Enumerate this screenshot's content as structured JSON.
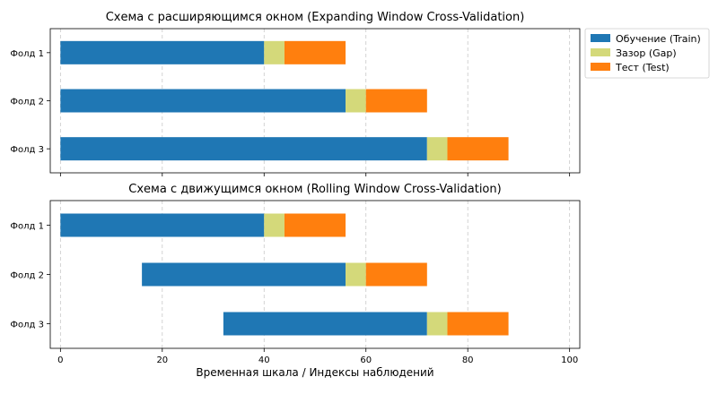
{
  "chart_data": {
    "type": "bar",
    "orientation": "horizontal-stacked-gantt",
    "xlabel": "Временная шкала / Индексы наблюдений",
    "xlim": [
      -2,
      102
    ],
    "xticks": [
      0,
      20,
      40,
      60,
      80,
      100
    ],
    "grid": "vertical-dashed",
    "legend": {
      "placement": "outside-top-right",
      "entries": [
        {
          "key": "train",
          "label": "Обучение (Train)",
          "color": "#1f77b4"
        },
        {
          "key": "gap",
          "label": "Зазор (Gap)",
          "color": "#d4d97a"
        },
        {
          "key": "test",
          "label": "Тест (Test)",
          "color": "#ff7f0e"
        }
      ]
    },
    "panels": [
      {
        "title": "Схема с расширяющимся окном (Expanding Window Cross-Validation)",
        "folds": [
          {
            "label": "Фолд 1",
            "train": [
              0,
              40
            ],
            "gap": [
              40,
              44
            ],
            "test": [
              44,
              56
            ]
          },
          {
            "label": "Фолд 2",
            "train": [
              0,
              56
            ],
            "gap": [
              56,
              60
            ],
            "test": [
              60,
              72
            ]
          },
          {
            "label": "Фолд 3",
            "train": [
              0,
              72
            ],
            "gap": [
              72,
              76
            ],
            "test": [
              76,
              88
            ]
          }
        ]
      },
      {
        "title": "Схема с движущимся окном (Rolling Window Cross-Validation)",
        "folds": [
          {
            "label": "Фолд 1",
            "train": [
              0,
              40
            ],
            "gap": [
              40,
              44
            ],
            "test": [
              44,
              56
            ]
          },
          {
            "label": "Фолд 2",
            "train": [
              16,
              56
            ],
            "gap": [
              56,
              60
            ],
            "test": [
              60,
              72
            ]
          },
          {
            "label": "Фолд 3",
            "train": [
              32,
              72
            ],
            "gap": [
              72,
              76
            ],
            "test": [
              76,
              88
            ]
          }
        ]
      }
    ]
  }
}
